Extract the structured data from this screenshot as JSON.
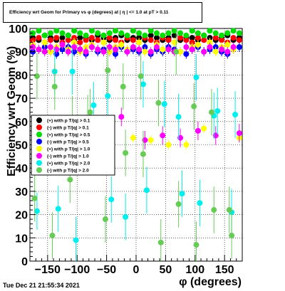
{
  "header": {
    "title": "Efficiency wrt Geom for Primary vs φ (degrees) at | η | <= 1.0 at pT > 0.11"
  },
  "footer": {
    "timestamp": "Tue Dec 21 21:55:34 2021"
  },
  "chart_data": {
    "type": "scatter",
    "title": "Efficiency wrt Geom for Primary vs φ (degrees) at | η | <= 1.0 at pT > 0.11",
    "xlabel": "φ (degrees)",
    "ylabel": "Efficiency wrt Geom (%)",
    "xlim": [
      -180,
      180
    ],
    "ylim": [
      0,
      100
    ],
    "xticks": [
      -150,
      -100,
      -50,
      0,
      50,
      100,
      150
    ],
    "yticks": [
      0,
      10,
      20,
      30,
      40,
      50,
      60,
      70,
      80,
      90,
      100
    ],
    "grid": true,
    "legend_position": "left-middle",
    "series": [
      {
        "name": "(+) with p T/|q| > 0.1",
        "color": "#000000",
        "x": [
          -175,
          -165,
          -155,
          -145,
          -135,
          -125,
          -115,
          -105,
          -95,
          -85,
          -75,
          -65,
          -55,
          -45,
          -35,
          -25,
          -15,
          -5,
          5,
          15,
          25,
          35,
          45,
          55,
          65,
          75,
          85,
          95,
          105,
          115,
          125,
          135,
          145,
          155,
          165,
          175
        ],
        "y": [
          96,
          95,
          97,
          96,
          95,
          96,
          97,
          95,
          96,
          96,
          95,
          97,
          96,
          95,
          96,
          97,
          95,
          96,
          96,
          95,
          97,
          96,
          95,
          96,
          97,
          95,
          96,
          96,
          95,
          97,
          96,
          95,
          96,
          97,
          95,
          96
        ],
        "err": [
          1,
          1,
          1,
          1,
          1,
          1,
          1,
          1,
          1,
          1,
          1,
          1,
          1,
          1,
          1,
          1,
          1,
          1,
          1,
          1,
          1,
          1,
          1,
          1,
          1,
          1,
          1,
          1,
          1,
          1,
          1,
          1,
          1,
          1,
          1,
          1
        ]
      },
      {
        "name": "(-) with p T/|q| > 0.1",
        "color": "#ff0000",
        "x": [
          -175,
          -165,
          -155,
          -145,
          -135,
          -125,
          -115,
          -105,
          -95,
          -85,
          -75,
          -65,
          -55,
          -45,
          -35,
          -25,
          -15,
          -5,
          5,
          15,
          25,
          35,
          45,
          55,
          65,
          75,
          85,
          95,
          105,
          115,
          125,
          135,
          145,
          155,
          165,
          175
        ],
        "y": [
          95,
          96,
          94,
          95,
          96,
          94,
          95,
          96,
          94,
          95,
          96,
          95,
          94,
          96,
          95,
          94,
          96,
          95,
          94,
          96,
          95,
          94,
          96,
          95,
          94,
          96,
          95,
          94,
          96,
          95,
          94,
          96,
          95,
          94,
          96,
          95
        ],
        "err": [
          1,
          1,
          1,
          1,
          1,
          1,
          1,
          1,
          1,
          1,
          1,
          1,
          1,
          1,
          1,
          1,
          1,
          1,
          1,
          1,
          1,
          1,
          1,
          1,
          1,
          1,
          1,
          1,
          1,
          1,
          1,
          1,
          1,
          1,
          1,
          1
        ]
      },
      {
        "name": "(+) with p T/|q| > 0.5",
        "color": "#00dd00",
        "x": [
          -175,
          -165,
          -155,
          -145,
          -135,
          -125,
          -115,
          -105,
          -95,
          -85,
          -75,
          -65,
          -55,
          -45,
          -35,
          -25,
          -15,
          -5,
          5,
          15,
          25,
          35,
          45,
          55,
          65,
          75,
          85,
          95,
          105,
          115,
          125,
          135,
          145,
          155,
          165,
          175
        ],
        "y": [
          98,
          99,
          97,
          98,
          99,
          98,
          97,
          99,
          98,
          97,
          99,
          98,
          97,
          98,
          99,
          98,
          97,
          99,
          98,
          97,
          99,
          98,
          97,
          98,
          99,
          98,
          97,
          99,
          98,
          97,
          99,
          98,
          97,
          98,
          99,
          98
        ],
        "err": [
          1,
          1,
          1,
          1,
          1,
          1,
          1,
          1,
          1,
          1,
          1,
          1,
          1,
          1,
          1,
          1,
          1,
          1,
          1,
          1,
          1,
          1,
          1,
          1,
          1,
          1,
          1,
          1,
          1,
          1,
          1,
          1,
          1,
          1,
          1,
          1
        ]
      },
      {
        "name": "(-) with p T/|q| > 0.5",
        "color": "#0000ff",
        "x": [
          -175,
          -165,
          -155,
          -145,
          -135,
          -125,
          -115,
          -105,
          -95,
          -85,
          -75,
          -65,
          -55,
          -45,
          -35,
          -25,
          -15,
          -5,
          5,
          15,
          25,
          35,
          45,
          55,
          65,
          75,
          85,
          95,
          105,
          115,
          125,
          135,
          145,
          155,
          165,
          175
        ],
        "y": [
          90,
          91,
          92,
          90,
          89,
          91,
          92,
          90,
          91,
          89,
          92,
          90,
          91,
          90,
          89,
          92,
          90,
          91,
          90,
          92,
          89,
          91,
          90,
          92,
          91,
          90,
          89,
          91,
          92,
          90,
          91,
          92,
          90,
          89,
          91,
          92
        ],
        "err": [
          2,
          2,
          2,
          2,
          2,
          2,
          2,
          2,
          2,
          2,
          2,
          2,
          2,
          2,
          2,
          2,
          2,
          2,
          2,
          2,
          2,
          2,
          2,
          2,
          2,
          2,
          2,
          2,
          2,
          2,
          2,
          2,
          2,
          2,
          2,
          2
        ]
      },
      {
        "name": "(+) with p T/|q| > 1.0",
        "color": "#ffff00",
        "x": [
          -175,
          -165,
          -155,
          -145,
          -135,
          -125,
          -115,
          -105,
          -95,
          -85,
          -75,
          -65,
          -55,
          -45,
          -35,
          -25,
          -15,
          -5,
          5,
          15,
          25,
          35,
          45,
          55,
          65,
          75,
          85,
          95,
          105,
          115,
          125,
          135,
          145,
          155,
          165,
          175
        ],
        "y": [
          93,
          91,
          94,
          90,
          92,
          93,
          91,
          94,
          90,
          92,
          93,
          91,
          94,
          90,
          92,
          93,
          91,
          53,
          94,
          90,
          52,
          93,
          91,
          50,
          94,
          90,
          50,
          92,
          93,
          57,
          94,
          90,
          92,
          93,
          91,
          53
        ],
        "err": [
          2,
          2,
          2,
          2,
          2,
          2,
          2,
          2,
          2,
          2,
          2,
          2,
          2,
          2,
          2,
          2,
          2,
          2,
          2,
          2,
          2,
          2,
          2,
          2,
          2,
          2,
          2,
          2,
          2,
          2,
          2,
          2,
          2,
          2,
          2,
          2
        ]
      },
      {
        "name": "(-) with p T/|q| > 1.0",
        "color": "#ff00ff",
        "x": [
          -175,
          -165,
          -155,
          -145,
          -135,
          -125,
          -115,
          -105,
          -95,
          -85,
          -75,
          -65,
          -55,
          -45,
          -35,
          -25,
          -15,
          -5,
          5,
          15,
          25,
          35,
          45,
          55,
          65,
          75,
          85,
          95,
          105,
          115,
          125,
          135,
          145,
          155,
          165,
          175
        ],
        "y": [
          92,
          91,
          90,
          92,
          91,
          93,
          90,
          92,
          91,
          90,
          92,
          91,
          90,
          92,
          91,
          62,
          90,
          92,
          91,
          52,
          90,
          92,
          54,
          91,
          90,
          53,
          92,
          91,
          56,
          90,
          92,
          54,
          91,
          90,
          92,
          55
        ],
        "err": [
          2,
          2,
          2,
          2,
          2,
          2,
          2,
          2,
          2,
          2,
          2,
          2,
          2,
          2,
          2,
          4,
          2,
          2,
          2,
          4,
          2,
          2,
          4,
          2,
          2,
          4,
          2,
          2,
          4,
          2,
          2,
          4,
          2,
          2,
          2,
          4
        ]
      },
      {
        "name": "(+) with p T/|q| > 2.0",
        "color": "#00eeee",
        "x": [
          -168,
          -138,
          -132,
          -108,
          -102,
          -72,
          -48,
          -42,
          -18,
          12,
          18,
          48,
          72,
          78,
          102,
          108,
          132,
          138,
          162,
          168
        ],
        "y": [
          21.5,
          81.5,
          22.5,
          81.5,
          9,
          67,
          71,
          26.5,
          19,
          76,
          30.5,
          67.5,
          62,
          29,
          79,
          25,
          62.5,
          64.5,
          21,
          63
        ],
        "err": [
          8,
          10,
          10,
          10,
          10,
          10,
          10,
          10,
          10,
          10,
          10,
          10,
          10,
          10,
          10,
          10,
          10,
          10,
          10,
          10
        ]
      },
      {
        "name": "(-) with p T/|q| > 2.0",
        "color": "#66cc55",
        "x": [
          -172,
          -168,
          -142,
          -138,
          -112,
          -108,
          -82,
          -78,
          -52,
          -48,
          -22,
          -18,
          8,
          12,
          38,
          42,
          68,
          72,
          98,
          102,
          128,
          132,
          158,
          162
        ],
        "y": [
          27,
          79.5,
          11,
          75,
          35,
          61,
          61.5,
          64,
          18,
          82,
          75,
          46.5,
          79.5,
          46,
          68,
          8,
          90,
          24.5,
          66.5,
          7,
          64,
          22,
          22,
          11
        ],
        "err": [
          10,
          10,
          10,
          10,
          10,
          10,
          10,
          10,
          10,
          10,
          10,
          10,
          10,
          10,
          10,
          10,
          10,
          10,
          10,
          10,
          10,
          10,
          10,
          10
        ]
      }
    ]
  }
}
